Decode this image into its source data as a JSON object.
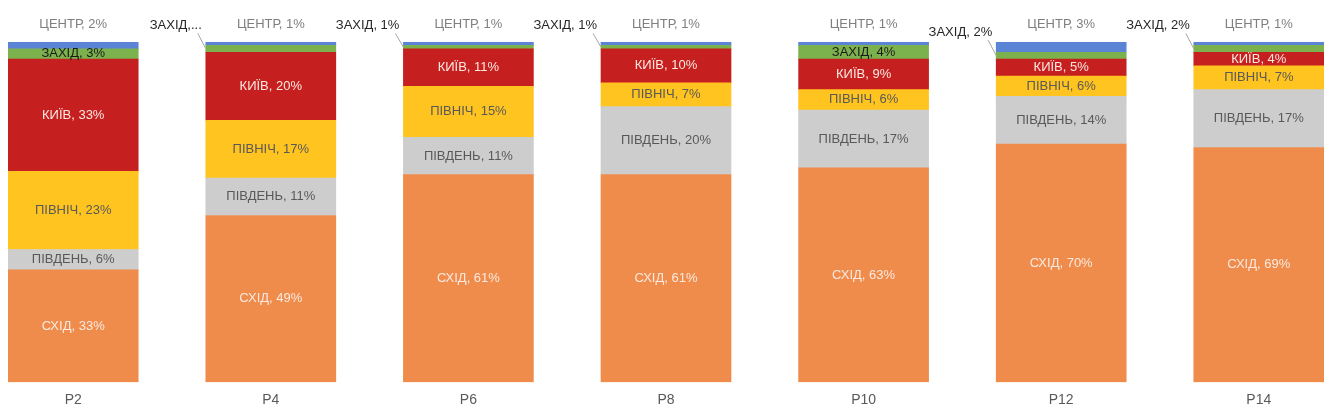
{
  "chart_data": {
    "type": "bar",
    "stacked": true,
    "categories": [
      "P2",
      "P4",
      "P6",
      "P8",
      "P10",
      "P12",
      "P14"
    ],
    "legend": false,
    "grid": false,
    "series": [
      {
        "color": "#ef8c4b",
        "values": [
          33,
          49,
          61,
          61,
          63,
          70,
          69
        ],
        "value_labels": [
          "СХІД, 33%",
          "СХІД, 49%",
          "СХІД, 61%",
          "СХІД, 61%",
          "СХІД, 63%",
          "СХІД, 70%",
          "СХІД, 69%"
        ]
      },
      {
        "color": "#cdcdcd",
        "values": [
          6,
          11,
          11,
          20,
          17,
          14,
          17
        ],
        "value_labels": [
          "ПІВДЕНЬ, 6%",
          "ПІВДЕНЬ, 11%",
          "ПІВДЕНЬ, 11%",
          "ПІВДЕНЬ, 20%",
          "ПІВДЕНЬ, 17%",
          "ПІВДЕНЬ, 14%",
          "ПІВДЕНЬ, 17%"
        ]
      },
      {
        "color": "#ffc41f",
        "values": [
          23,
          17,
          15,
          7,
          6,
          6,
          7
        ],
        "value_labels": [
          "ПІВНІЧ, 23%",
          "ПІВНІЧ, 17%",
          "ПІВНІЧ, 15%",
          "ПІВНІЧ, 7%",
          "ПІВНІЧ, 6%",
          "ПІВНІЧ, 6%",
          "ПІВНІЧ, 7%"
        ]
      },
      {
        "color": "#c61f1f",
        "values": [
          33,
          20,
          11,
          10,
          9,
          5,
          4
        ],
        "value_labels": [
          "КИЇВ, 33%",
          "КИЇВ, 20%",
          "КИЇВ, 11%",
          "КИЇВ, 10%",
          "КИЇВ, 9%",
          "КИЇВ, 5%",
          "КИЇВ, 4%"
        ]
      },
      {
        "color": "#7cb24e",
        "values": [
          3,
          2,
          1,
          1,
          4,
          2,
          2
        ],
        "value_labels": [
          "ЗАХІД, 3%",
          "ЗАХІД,...",
          "ЗАХІД, 1%",
          "ЗАХІД, 1%",
          "ЗАХІД, 4%",
          "ЗАХІД, 2%",
          "ЗАХІД, 2%"
        ]
      },
      {
        "color": "#5b83d6",
        "values": [
          2,
          1,
          1,
          1,
          1,
          3,
          1
        ],
        "value_labels": [
          "ЦЕНТР, 2%",
          "ЦЕНТР, 1%",
          "ЦЕНТР, 1%",
          "ЦЕНТР, 1%",
          "ЦЕНТР, 1%",
          "ЦЕНТР, 3%",
          "ЦЕНТР, 1%"
        ]
      }
    ]
  }
}
